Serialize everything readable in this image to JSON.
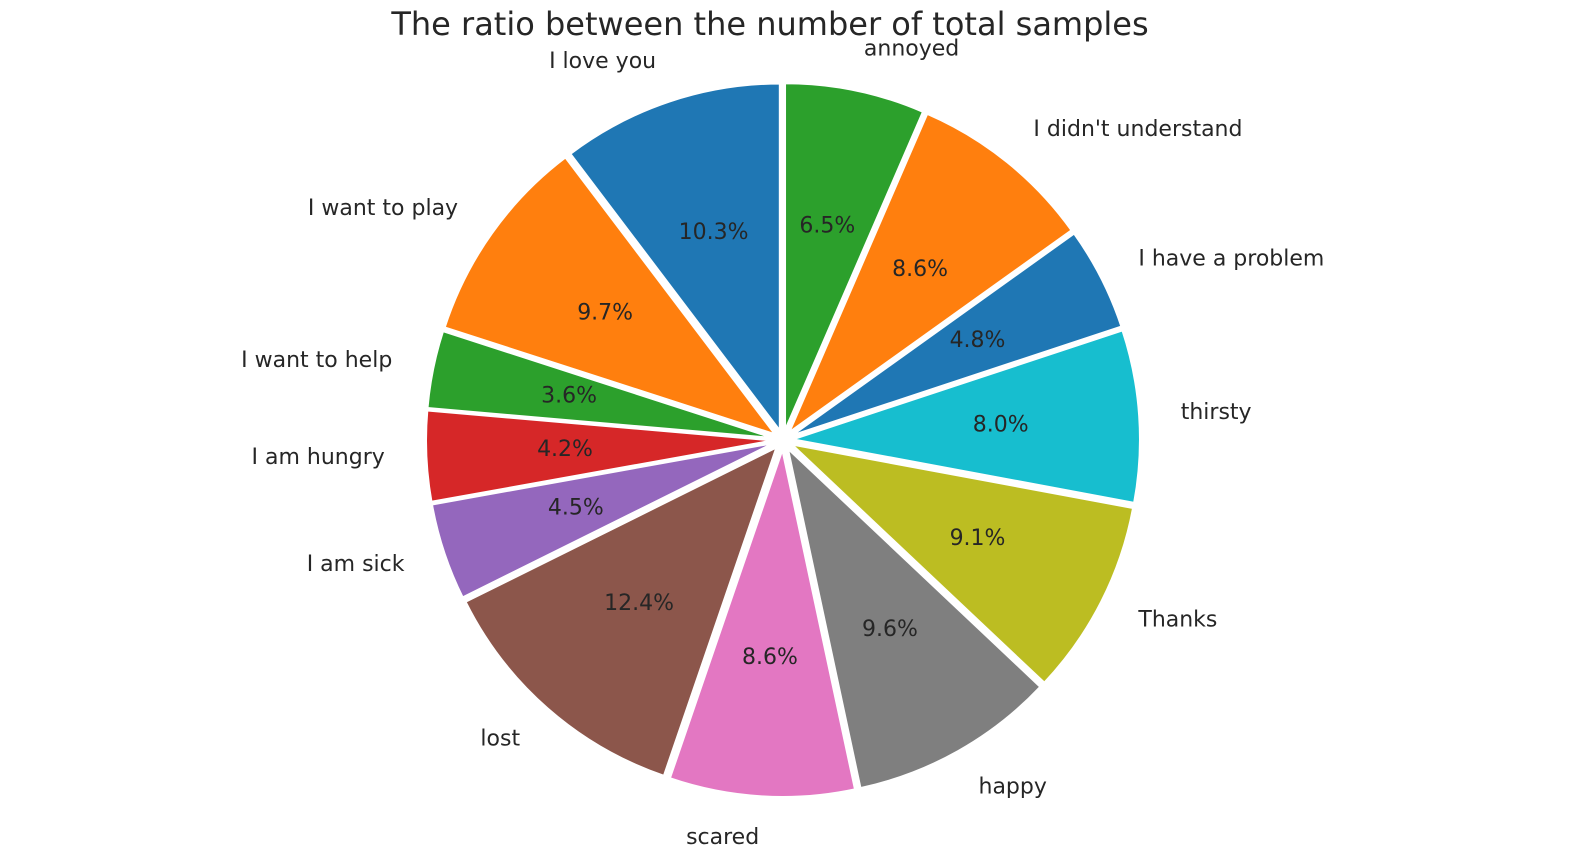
{
  "chart_data": {
    "type": "pie",
    "title": "The ratio between the number of total samples",
    "start_angle_deg": 90,
    "direction": "counterclockwise",
    "slices": [
      {
        "label": "I love you",
        "value": 10.3,
        "pct_label": "10.3%",
        "color": "#1f77b4"
      },
      {
        "label": "I want to play",
        "value": 9.7,
        "pct_label": "9.7%",
        "color": "#ff7f0e"
      },
      {
        "label": "I want to help",
        "value": 3.6,
        "pct_label": "3.6%",
        "color": "#2ca02c"
      },
      {
        "label": "I am hungry",
        "value": 4.2,
        "pct_label": "4.2%",
        "color": "#d62728"
      },
      {
        "label": "I am sick",
        "value": 4.5,
        "pct_label": "4.5%",
        "color": "#9467bd"
      },
      {
        "label": "lost",
        "value": 12.4,
        "pct_label": "12.4%",
        "color": "#8c564b"
      },
      {
        "label": "scared",
        "value": 8.6,
        "pct_label": "8.6%",
        "color": "#e377c2"
      },
      {
        "label": "happy",
        "value": 9.6,
        "pct_label": "9.6%",
        "color": "#7f7f7f"
      },
      {
        "label": "Thanks",
        "value": 9.1,
        "pct_label": "9.1%",
        "color": "#bcbd22"
      },
      {
        "label": "thirsty",
        "value": 8.0,
        "pct_label": "8.0%",
        "color": "#17becf"
      },
      {
        "label": "I have a problem",
        "value": 4.8,
        "pct_label": "4.8%",
        "color": "#1f77b4"
      },
      {
        "label": "I didn't understand",
        "value": 8.6,
        "pct_label": "8.6%",
        "color": "#ff7f0e"
      },
      {
        "label": "annoyed",
        "value": 6.5,
        "pct_label": "6.5%",
        "color": "#2ca02c"
      }
    ]
  }
}
